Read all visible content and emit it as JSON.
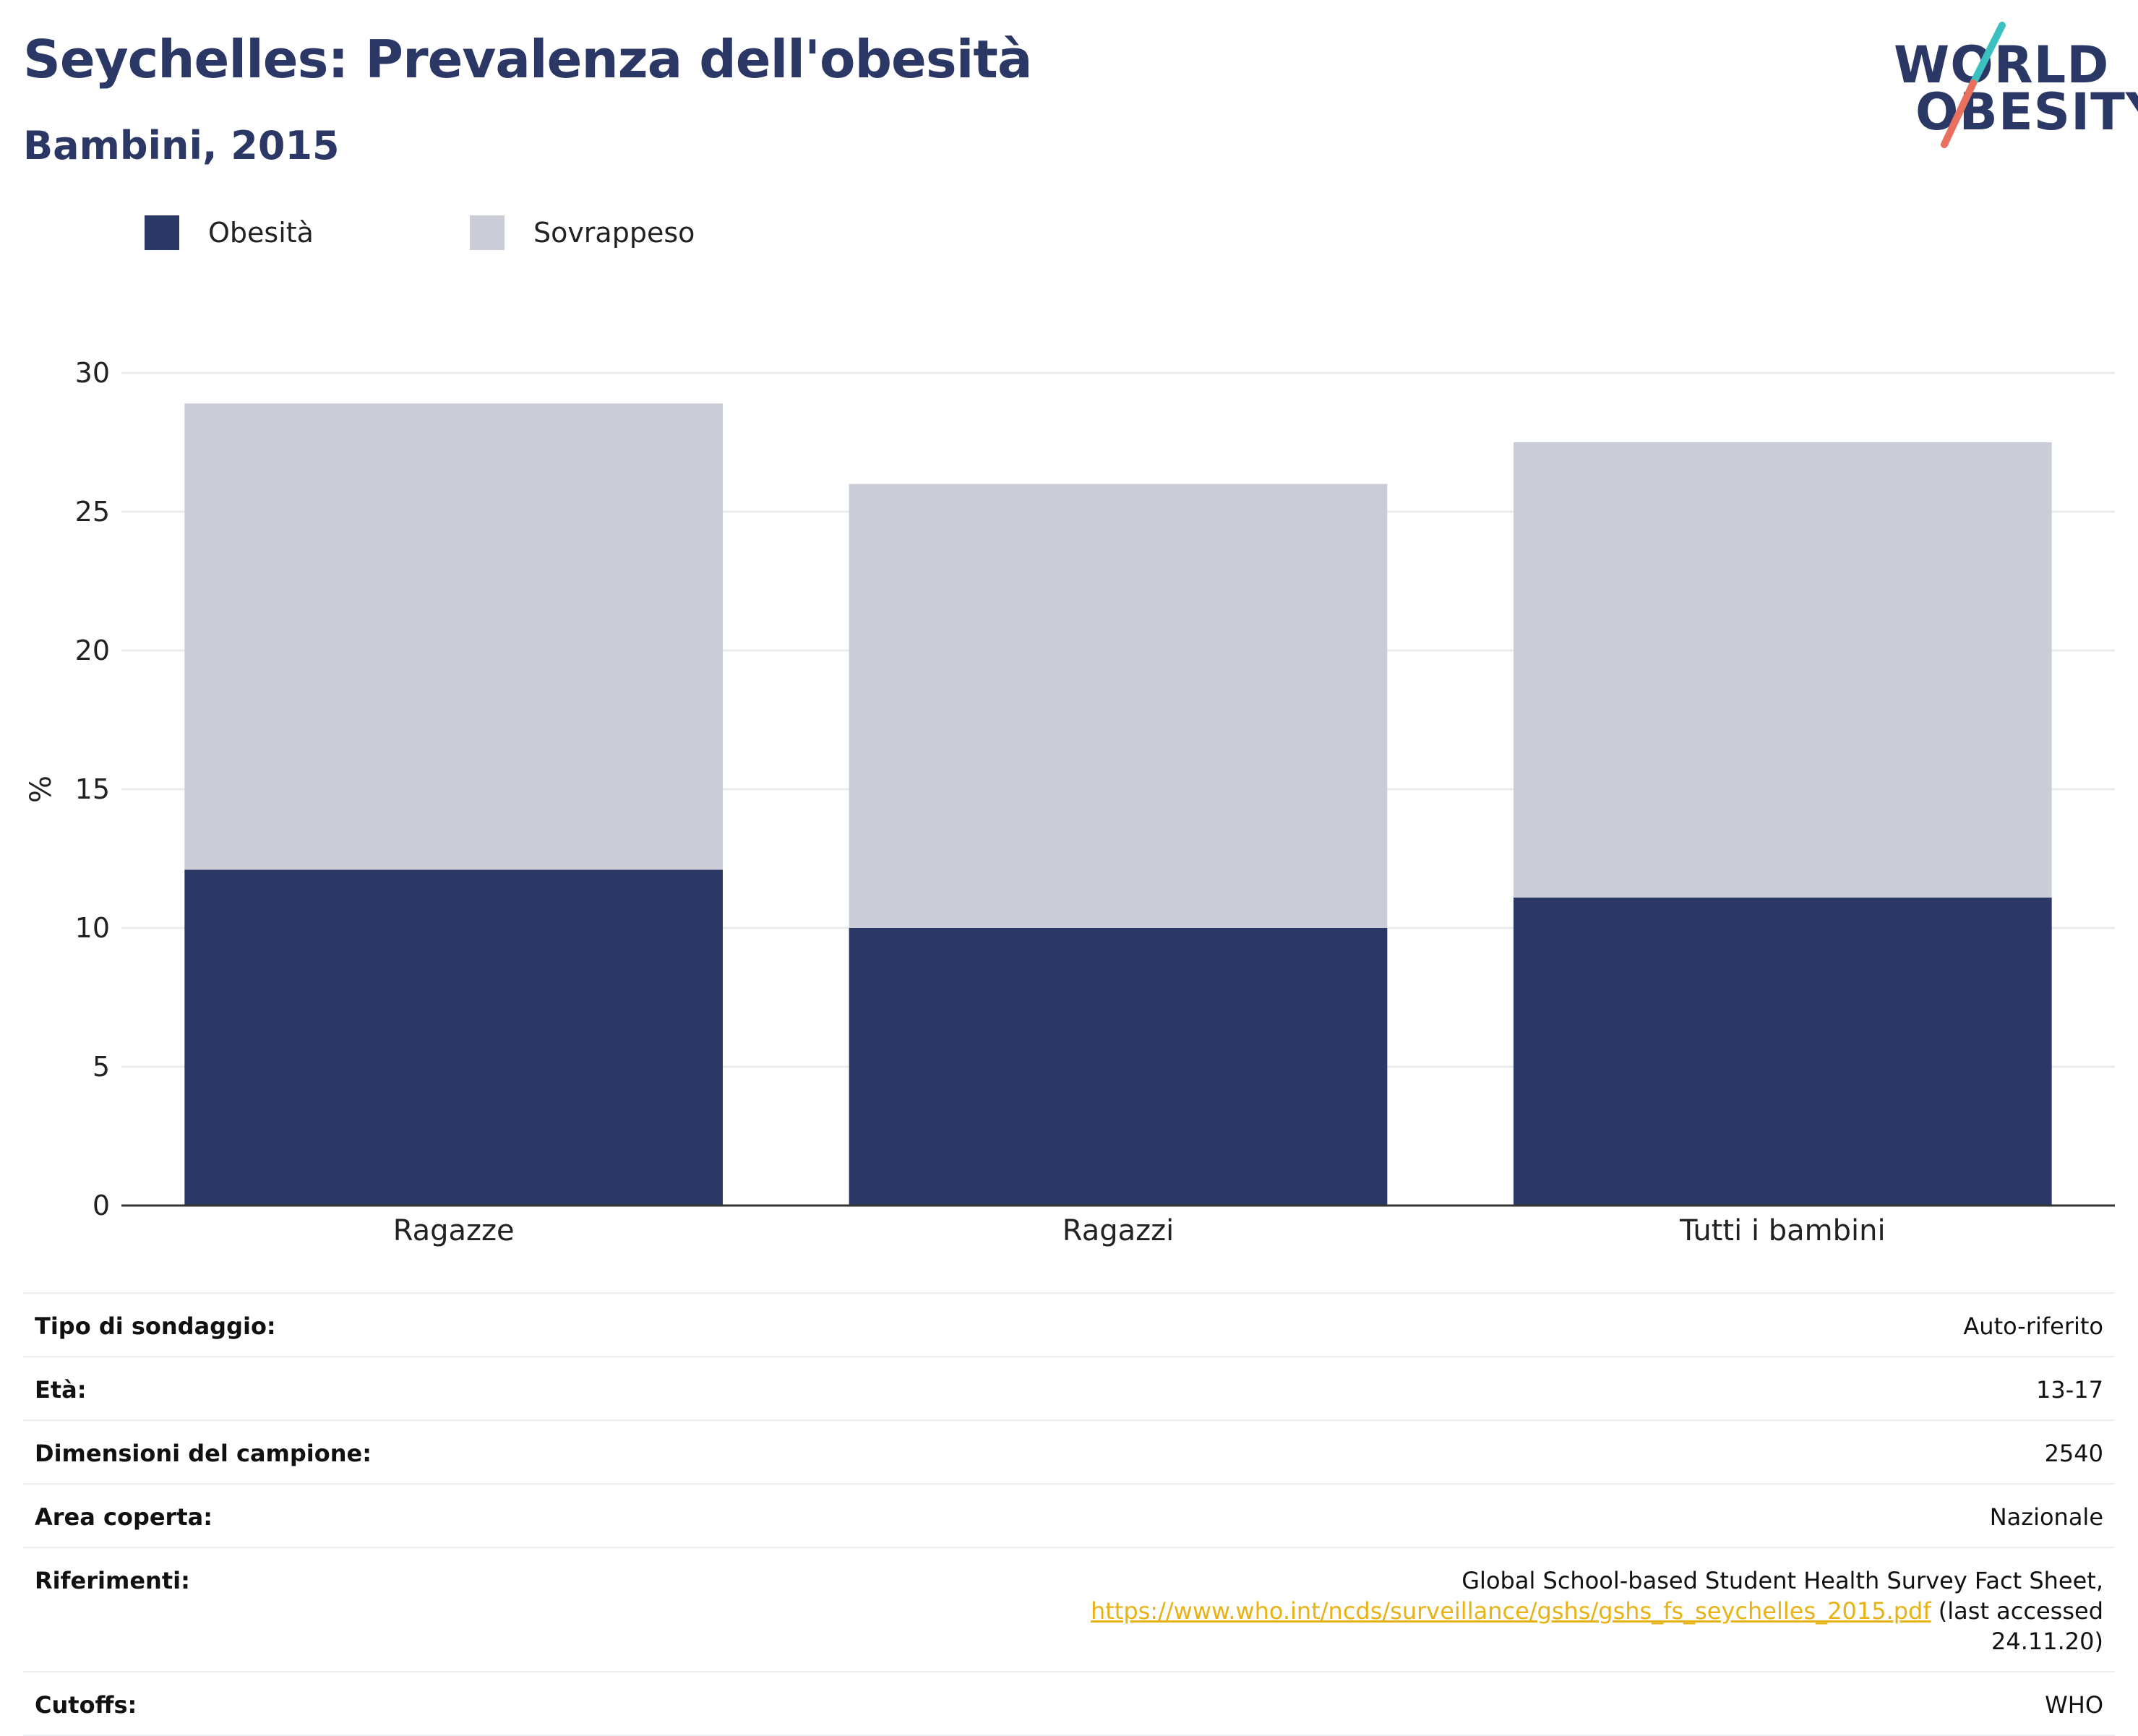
{
  "header": {
    "title": "Seychelles: Prevalenza dell'obesità",
    "subtitle": "Bambini, 2015"
  },
  "logo": {
    "line1": "WORLD",
    "line2": "OBESITY",
    "colors": {
      "text": "#2b3764",
      "slash_top": "#3bbfbf",
      "slash_bottom": "#e96f5f"
    }
  },
  "legend": [
    {
      "label": "Obesità",
      "color": "#2b3764"
    },
    {
      "label": "Sovrappeso",
      "color": "#cacdd8"
    }
  ],
  "chart_data": {
    "type": "bar",
    "stacked": true,
    "categories": [
      "Ragazze",
      "Ragazzi",
      "Tutti i bambini"
    ],
    "series": [
      {
        "name": "Obesità",
        "values": [
          12.1,
          10.0,
          11.1
        ],
        "color": "#2b3764"
      },
      {
        "name": "Sovrappeso",
        "values": [
          16.8,
          16.0,
          16.4
        ],
        "color": "#cacdd8"
      }
    ],
    "ylabel": "%",
    "ylim": [
      0,
      30
    ],
    "yticks": [
      0,
      5,
      10,
      15,
      20,
      25,
      30
    ],
    "grid": true,
    "legend_position": "top-left"
  },
  "info": [
    {
      "key": "Tipo di sondaggio:",
      "value": "Auto-riferito"
    },
    {
      "key": "Età:",
      "value": "13-17"
    },
    {
      "key": "Dimensioni del campione:",
      "value": "2540"
    },
    {
      "key": "Area coperta:",
      "value": "Nazionale"
    },
    {
      "key": "Riferimenti:",
      "value_prefix": "Global School-based Student Health Survey Fact Sheet, ",
      "link": "https://www.who.int/ncds/surveillance/gshs/gshs_fs_seychelles_2015.pdf",
      "value_suffix": " (last accessed 24.11.20)"
    },
    {
      "key": "Cutoffs:",
      "value": "WHO"
    }
  ]
}
